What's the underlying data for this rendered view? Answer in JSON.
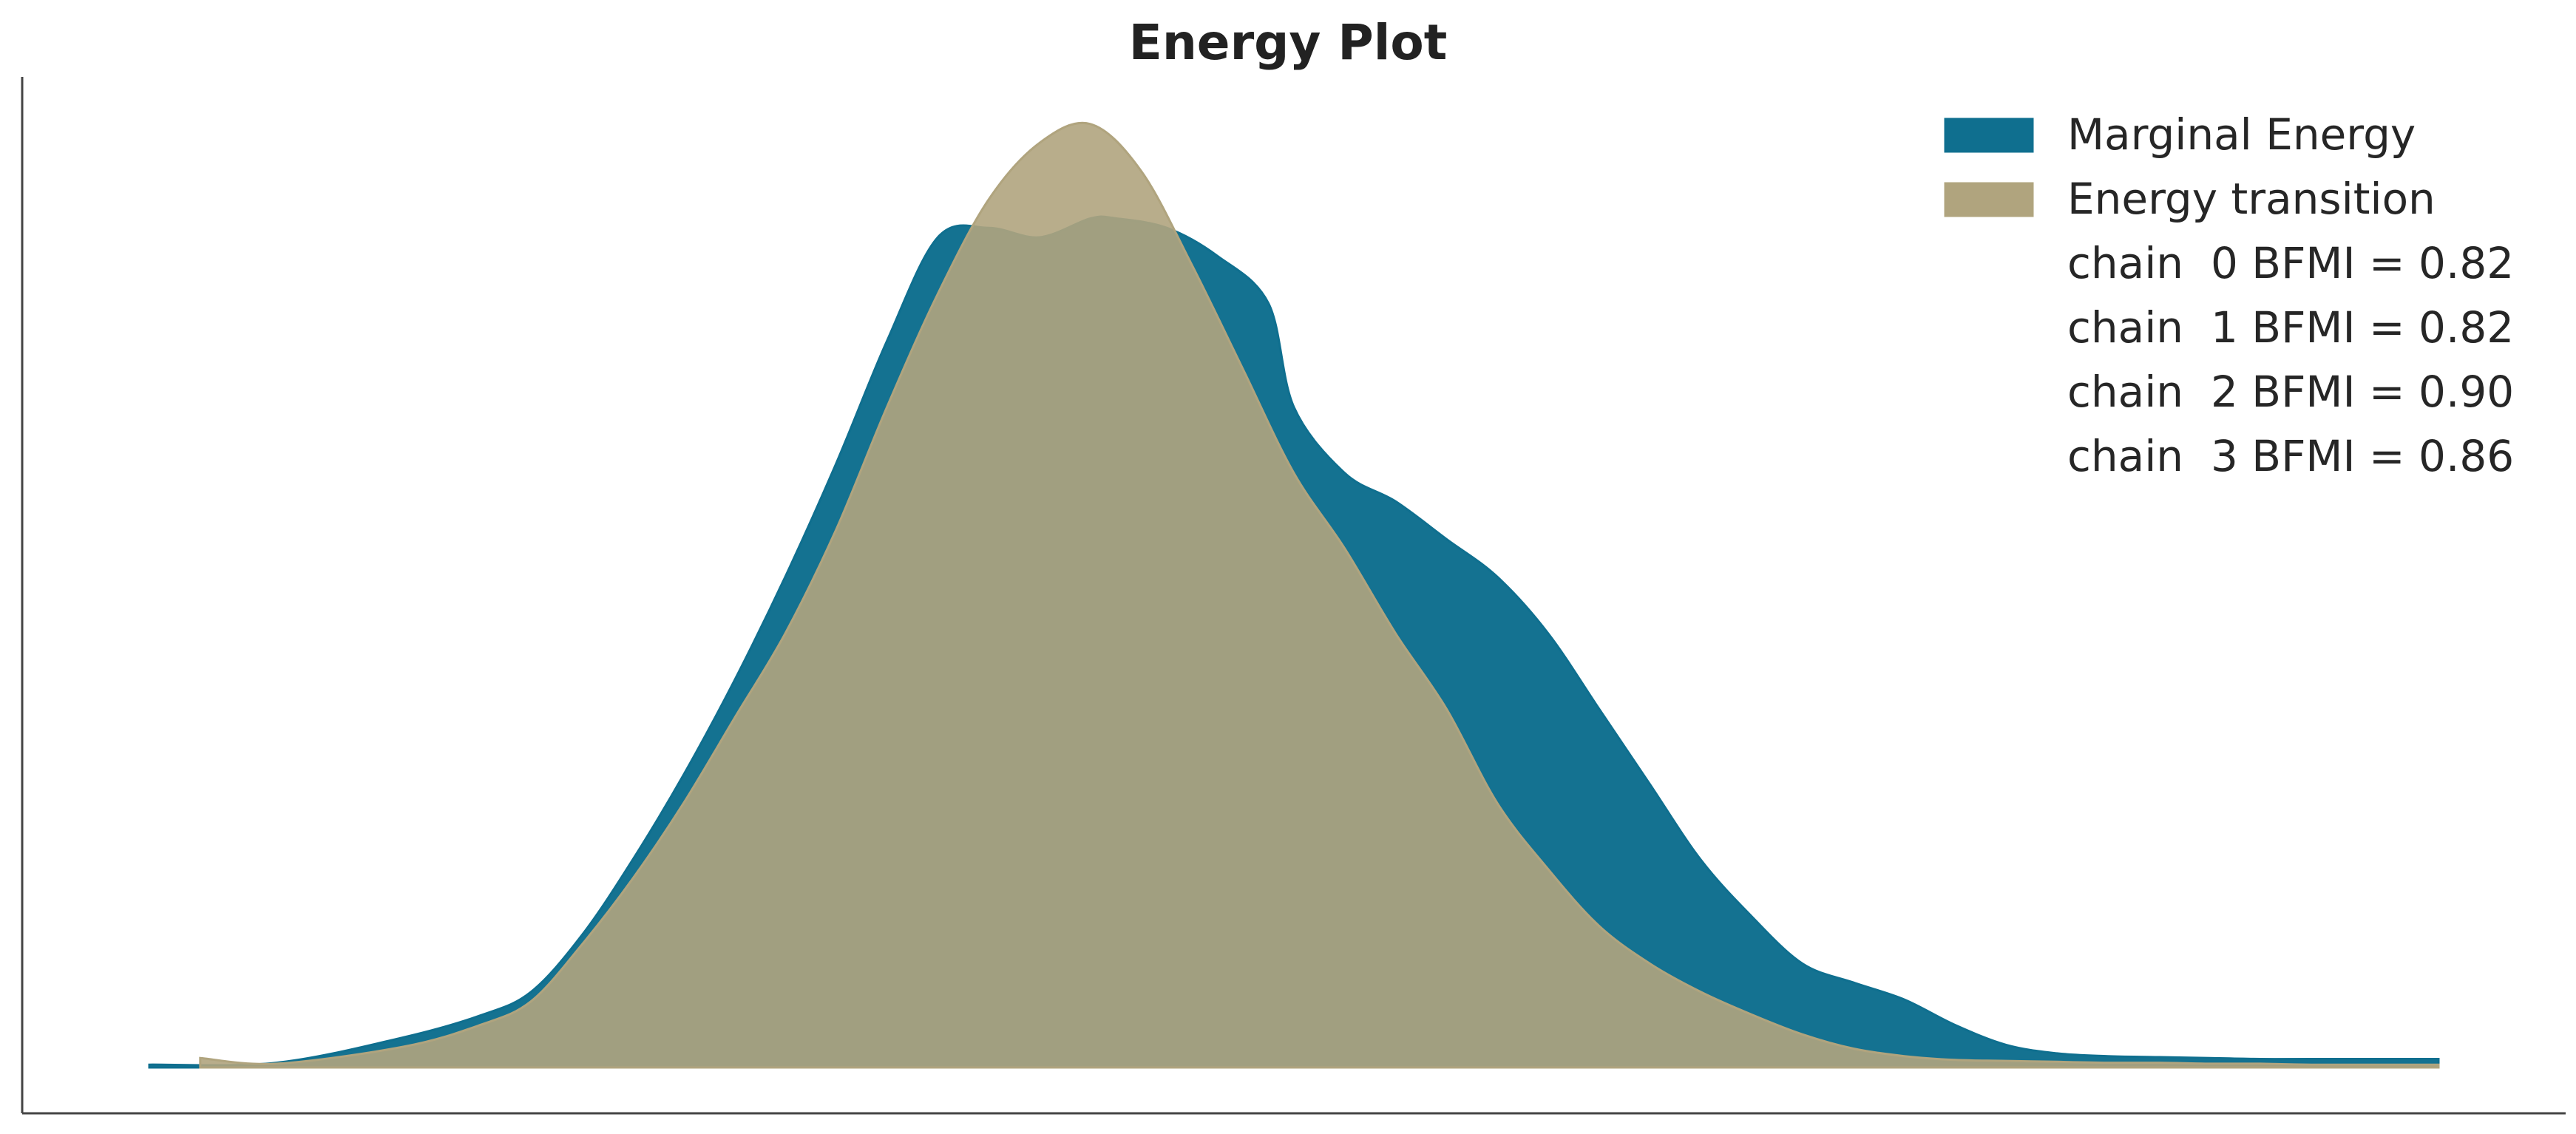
{
  "chart_data": {
    "type": "area",
    "title": "Energy Plot",
    "xlabel": "",
    "ylabel": "",
    "grid": false,
    "legend_position": "top-right",
    "axes_visible": [
      "left",
      "bottom"
    ],
    "xlim": [
      0,
      1
    ],
    "ylim": [
      0,
      1.05
    ],
    "series": [
      {
        "name": "Marginal Energy",
        "color": "#0f6f8f",
        "opacity": 0.98,
        "x": [
          0.05,
          0.1,
          0.15,
          0.18,
          0.2,
          0.22,
          0.24,
          0.26,
          0.28,
          0.3,
          0.32,
          0.34,
          0.36,
          0.38,
          0.4,
          0.42,
          0.43,
          0.45,
          0.47,
          0.49,
          0.5,
          0.52,
          0.54,
          0.56,
          0.58,
          0.6,
          0.62,
          0.64,
          0.66,
          0.68,
          0.7,
          0.72,
          0.74,
          0.76,
          0.78,
          0.8,
          0.82,
          0.84,
          0.86,
          0.88,
          0.9,
          0.95
        ],
        "y": [
          0.003,
          0.005,
          0.032,
          0.055,
          0.08,
          0.14,
          0.22,
          0.31,
          0.41,
          0.52,
          0.64,
          0.77,
          0.88,
          0.89,
          0.88,
          0.9,
          0.9,
          0.89,
          0.86,
          0.81,
          0.7,
          0.63,
          0.6,
          0.56,
          0.52,
          0.46,
          0.38,
          0.3,
          0.22,
          0.16,
          0.11,
          0.09,
          0.072,
          0.045,
          0.024,
          0.015,
          0.012,
          0.011,
          0.01,
          0.009,
          0.009,
          0.009
        ]
      },
      {
        "name": "Energy transition",
        "color": "#b0a47e",
        "opacity": 0.9,
        "x": [
          0.07,
          0.1,
          0.15,
          0.18,
          0.2,
          0.22,
          0.24,
          0.26,
          0.28,
          0.3,
          0.32,
          0.34,
          0.36,
          0.38,
          0.4,
          0.42,
          0.44,
          0.46,
          0.48,
          0.5,
          0.52,
          0.54,
          0.56,
          0.58,
          0.6,
          0.62,
          0.64,
          0.66,
          0.68,
          0.7,
          0.72,
          0.74,
          0.76,
          0.78,
          0.8,
          0.82,
          0.84,
          0.86,
          0.88,
          0.9,
          0.95
        ],
        "y": [
          0.01,
          0.004,
          0.022,
          0.045,
          0.07,
          0.13,
          0.2,
          0.28,
          0.37,
          0.46,
          0.57,
          0.7,
          0.82,
          0.92,
          0.98,
          1.0,
          0.95,
          0.85,
          0.74,
          0.63,
          0.55,
          0.46,
          0.38,
          0.28,
          0.21,
          0.15,
          0.11,
          0.08,
          0.056,
          0.035,
          0.02,
          0.012,
          0.008,
          0.007,
          0.006,
          0.005,
          0.005,
          0.004,
          0.004,
          0.003,
          0.003
        ]
      }
    ],
    "legend": {
      "items": [
        {
          "label": "Marginal Energy",
          "color": "#0f6f8f"
        },
        {
          "label": "Energy transition",
          "color": "#b0a47e"
        }
      ],
      "annotations": [
        "chain  0 BFMI = 0.82",
        "chain  1 BFMI = 0.82",
        "chain  2 BFMI = 0.90",
        "chain  3 BFMI = 0.86"
      ]
    }
  }
}
